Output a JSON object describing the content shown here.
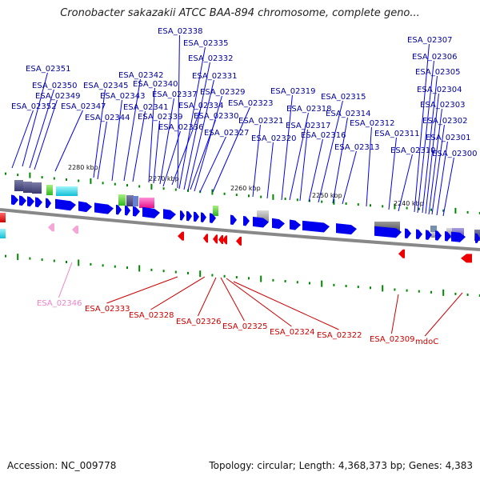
{
  "title": "Cronobacter sakazakii ATCC BAA-894 chromosome, complete geno...",
  "footer": {
    "accession": "Accession: NC_009778",
    "summary": "Topology: circular; Length: 4,368,373 bp; Genes: 4,383"
  },
  "colors": {
    "forward_gene": "#0000ee",
    "reverse_gene": "#ee0000",
    "forward_label": "#00009a",
    "reverse_label": "#cc0000",
    "pseudo_label": "#ee82c8",
    "tick": "#008800",
    "backbone": "#888888"
  },
  "scale_labels": [
    "2280 kbp",
    "2270 kbp",
    "2260 kbp",
    "2250 kbp",
    "2240 kbp"
  ],
  "forward_genes": [
    "ESA_02338",
    "ESA_02335",
    "ESA_02332",
    "ESA_02351",
    "ESA_02342",
    "ESA_02331",
    "ESA_02350",
    "ESA_02345",
    "ESA_02340",
    "ESA_02349",
    "ESA_02343",
    "ESA_02337",
    "ESA_02329",
    "ESA_02352",
    "ESA_02347",
    "ESA_02341",
    "ESA_02334",
    "ESA_02323",
    "ESA_02344",
    "ESA_02339",
    "ESA_02330",
    "ESA_02336",
    "ESA_02327",
    "ESA_02321",
    "ESA_02320",
    "ESA_02319",
    "ESA_02318",
    "ESA_02317",
    "ESA_02316",
    "ESA_02315",
    "ESA_02314",
    "ESA_02313",
    "ESA_02312",
    "ESA_02311",
    "ESA_02310",
    "ESA_02307",
    "ESA_02306",
    "ESA_02305",
    "ESA_02304",
    "ESA_02303",
    "ESA_02302",
    "ESA_02301",
    "ESA_02300"
  ],
  "reverse_genes": [
    "ESA_02346",
    "ESA_02333",
    "ESA_02328",
    "ESA_02326",
    "ESA_02325",
    "ESA_02324",
    "ESA_02322",
    "ESA_02309",
    "mdoC"
  ]
}
